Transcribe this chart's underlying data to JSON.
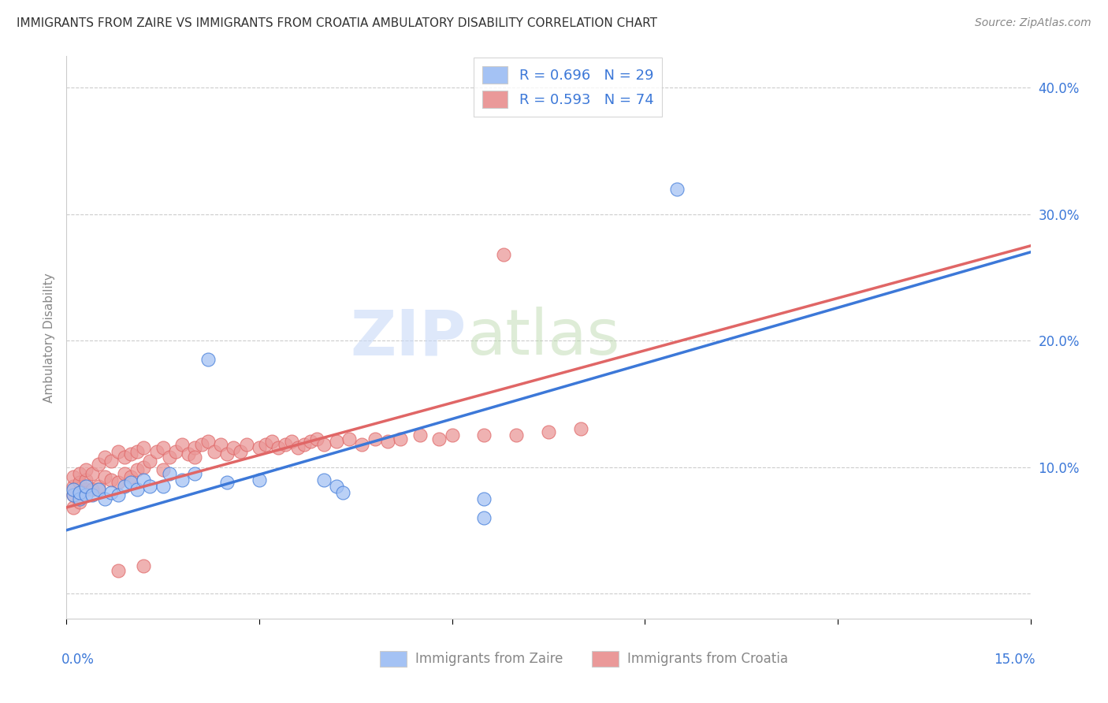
{
  "title": "IMMIGRANTS FROM ZAIRE VS IMMIGRANTS FROM CROATIA AMBULATORY DISABILITY CORRELATION CHART",
  "source": "Source: ZipAtlas.com",
  "ylabel": "Ambulatory Disability",
  "yticks": [
    0.0,
    0.1,
    0.2,
    0.3,
    0.4
  ],
  "ytick_labels": [
    "",
    "10.0%",
    "20.0%",
    "30.0%",
    "40.0%"
  ],
  "xlim": [
    0.0,
    0.15
  ],
  "ylim": [
    -0.02,
    0.425
  ],
  "zaire_color": "#a4c2f4",
  "croatia_color": "#ea9999",
  "zaire_line_color": "#3c78d8",
  "croatia_line_color": "#e06666",
  "legend_zaire_label": "R = 0.696   N = 29",
  "legend_croatia_label": "R = 0.593   N = 74",
  "legend_bottom_zaire": "Immigrants from Zaire",
  "legend_bottom_croatia": "Immigrants from Croatia",
  "watermark_zip": "ZIP",
  "watermark_atlas": "atlas",
  "zaire_x": [
    0.001,
    0.001,
    0.002,
    0.002,
    0.003,
    0.003,
    0.004,
    0.005,
    0.006,
    0.007,
    0.008,
    0.009,
    0.01,
    0.011,
    0.012,
    0.013,
    0.015,
    0.016,
    0.018,
    0.02,
    0.022,
    0.025,
    0.03,
    0.04,
    0.042,
    0.043,
    0.065,
    0.065,
    0.095
  ],
  "zaire_y": [
    0.078,
    0.082,
    0.075,
    0.08,
    0.078,
    0.085,
    0.078,
    0.082,
    0.075,
    0.08,
    0.078,
    0.085,
    0.088,
    0.082,
    0.09,
    0.085,
    0.085,
    0.095,
    0.09,
    0.095,
    0.185,
    0.088,
    0.09,
    0.09,
    0.085,
    0.08,
    0.06,
    0.075,
    0.32
  ],
  "croatia_x": [
    0.001,
    0.001,
    0.001,
    0.002,
    0.002,
    0.002,
    0.003,
    0.003,
    0.003,
    0.004,
    0.004,
    0.005,
    0.005,
    0.006,
    0.006,
    0.007,
    0.007,
    0.008,
    0.008,
    0.009,
    0.009,
    0.01,
    0.01,
    0.011,
    0.011,
    0.012,
    0.012,
    0.013,
    0.014,
    0.015,
    0.015,
    0.016,
    0.017,
    0.018,
    0.019,
    0.02,
    0.02,
    0.021,
    0.022,
    0.023,
    0.024,
    0.025,
    0.026,
    0.027,
    0.028,
    0.03,
    0.031,
    0.032,
    0.033,
    0.034,
    0.035,
    0.036,
    0.037,
    0.038,
    0.039,
    0.04,
    0.042,
    0.044,
    0.046,
    0.048,
    0.05,
    0.052,
    0.055,
    0.058,
    0.06,
    0.065,
    0.068,
    0.07,
    0.075,
    0.08,
    0.001,
    0.002,
    0.008,
    0.012
  ],
  "croatia_y": [
    0.078,
    0.085,
    0.092,
    0.08,
    0.088,
    0.095,
    0.082,
    0.09,
    0.098,
    0.082,
    0.095,
    0.085,
    0.102,
    0.092,
    0.108,
    0.09,
    0.105,
    0.088,
    0.112,
    0.095,
    0.108,
    0.092,
    0.11,
    0.098,
    0.112,
    0.1,
    0.115,
    0.105,
    0.112,
    0.098,
    0.115,
    0.108,
    0.112,
    0.118,
    0.11,
    0.115,
    0.108,
    0.118,
    0.12,
    0.112,
    0.118,
    0.11,
    0.115,
    0.112,
    0.118,
    0.115,
    0.118,
    0.12,
    0.115,
    0.118,
    0.12,
    0.115,
    0.118,
    0.12,
    0.122,
    0.118,
    0.12,
    0.122,
    0.118,
    0.122,
    0.12,
    0.122,
    0.125,
    0.122,
    0.125,
    0.125,
    0.268,
    0.125,
    0.128,
    0.13,
    0.068,
    0.072,
    0.018,
    0.022
  ],
  "zaire_line_x0": 0.0,
  "zaire_line_y0": 0.05,
  "zaire_line_x1": 0.15,
  "zaire_line_y1": 0.27,
  "croatia_line_x0": 0.0,
  "croatia_line_y0": 0.068,
  "croatia_line_x1": 0.15,
  "croatia_line_y1": 0.275
}
